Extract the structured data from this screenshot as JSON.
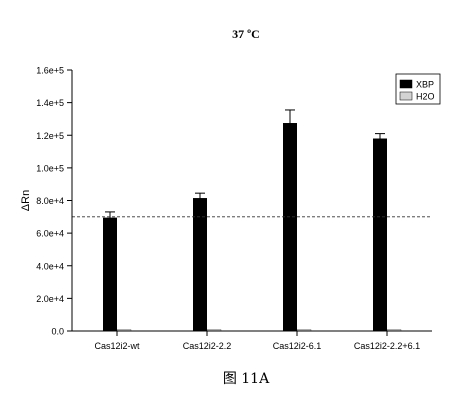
{
  "chart_data": {
    "type": "bar",
    "title": "37 ºC",
    "xlabel": "",
    "ylabel": "ΔRn",
    "ylim": [
      0,
      160000
    ],
    "y_ticks": [
      "0.0",
      "2.0e+4",
      "4.0e+4",
      "6.0e+4",
      "8.0e+4",
      "1.0e+5",
      "1.2e+5",
      "1.4e+5",
      "1.6e+5"
    ],
    "y_tick_values": [
      0,
      20000,
      40000,
      60000,
      80000,
      100000,
      120000,
      140000,
      160000
    ],
    "categories": [
      "Cas12i2-wt",
      "Cas12i2-2.2",
      "Cas12i2-6.1",
      "Cas12i2-2.2+6.1"
    ],
    "series": [
      {
        "name": "XBP",
        "color": "#000000",
        "values": [
          69500,
          81500,
          127500,
          118000
        ],
        "errors": [
          3500,
          3000,
          8000,
          3000
        ]
      },
      {
        "name": "H2O",
        "color": "#d3d3d3",
        "values": [
          0,
          0,
          0,
          0
        ],
        "errors": [
          0,
          0,
          0,
          0
        ]
      }
    ],
    "reference_line": 70000,
    "legend_position": "top-right",
    "grid": false
  },
  "caption": "图 11A"
}
